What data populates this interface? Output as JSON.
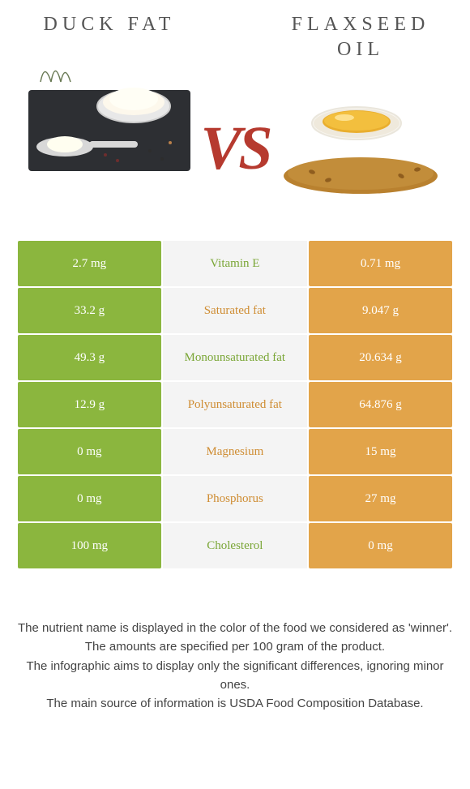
{
  "colors": {
    "green": "#8bb63e",
    "orange": "#e2a44a",
    "mid_bg": "#f4f4f4",
    "nutrient_green": "#7aa636",
    "nutrient_orange": "#cf8d33",
    "vs_color": "#b63a2f",
    "title_color": "#555555"
  },
  "left_food": {
    "title": "DUCK FAT"
  },
  "right_food": {
    "title": "FLAXSEED OIL"
  },
  "vs_label": "VS",
  "rows": [
    {
      "left": "2.7 mg",
      "nutrient": "Vitamin E",
      "right": "0.71 mg",
      "winner": "left"
    },
    {
      "left": "33.2 g",
      "nutrient": "Saturated fat",
      "right": "9.047 g",
      "winner": "right"
    },
    {
      "left": "49.3 g",
      "nutrient": "Monounsaturated fat",
      "right": "20.634 g",
      "winner": "left"
    },
    {
      "left": "12.9 g",
      "nutrient": "Polyunsaturated fat",
      "right": "64.876 g",
      "winner": "right"
    },
    {
      "left": "0 mg",
      "nutrient": "Magnesium",
      "right": "15 mg",
      "winner": "right"
    },
    {
      "left": "0 mg",
      "nutrient": "Phosphorus",
      "right": "27 mg",
      "winner": "right"
    },
    {
      "left": "100 mg",
      "nutrient": "Cholesterol",
      "right": "0 mg",
      "winner": "left"
    }
  ],
  "footer_lines": [
    "The nutrient name is displayed in the color of the food we considered as 'winner'.",
    "The amounts are specified per 100 gram of the product.",
    "The infographic aims to display only the significant differences, ignoring minor ones.",
    "The main source of information is USDA Food Composition Database."
  ]
}
